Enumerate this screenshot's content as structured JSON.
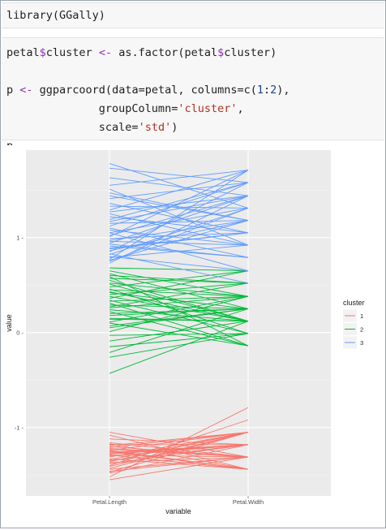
{
  "code": {
    "line1": "library(GGally)",
    "line2": "petal$cluster <- as.factor(petal$cluster)",
    "line3": "p <- ggparcoord(data=petal, columns=c(1:2),",
    "line4": "              groupColumn='cluster',",
    "line5": "              scale='std')",
    "line6": "p"
  },
  "chart_data": {
    "type": "line",
    "subtype": "parallel-coordinates",
    "xlabel": "variable",
    "ylabel": "value",
    "categories": [
      "Petal.Length",
      "Petal.Width"
    ],
    "ylim": [
      -1.72,
      1.92
    ],
    "y_ticks": [
      -1,
      0,
      1
    ],
    "y_tick_labels": [
      "-1 -",
      "0 -",
      "1 -"
    ],
    "x_tick_labels": [
      "Petal.Length",
      "Petal.Width"
    ],
    "grid": true,
    "legend": {
      "title": "cluster",
      "placement": "right",
      "entries": [
        "1",
        "2",
        "3"
      ]
    },
    "colors": {
      "1": "#F8766D",
      "2": "#00BA38",
      "3": "#619CFF"
    },
    "series": [
      {
        "name": "1",
        "lines": [
          [
            -1.23,
            -1.31
          ],
          [
            -1.28,
            -1.18
          ],
          [
            -1.25,
            -1.44
          ],
          [
            -1.36,
            -1.05
          ],
          [
            -1.2,
            -1.31
          ],
          [
            -1.48,
            -1.18
          ],
          [
            -1.31,
            -1.05
          ],
          [
            -1.4,
            -0.92
          ],
          [
            -1.17,
            -1.44
          ],
          [
            -1.46,
            -1.31
          ],
          [
            -1.26,
            -1.18
          ],
          [
            -1.34,
            -1.05
          ],
          [
            -1.22,
            -1.31
          ],
          [
            -1.52,
            -0.79
          ],
          [
            -1.29,
            -1.44
          ],
          [
            -1.38,
            -1.18
          ],
          [
            -1.19,
            -1.05
          ],
          [
            -1.44,
            -1.31
          ],
          [
            -1.27,
            -1.18
          ],
          [
            -1.33,
            -1.44
          ],
          [
            -1.21,
            -1.05
          ],
          [
            -1.55,
            -1.31
          ],
          [
            -1.3,
            -1.18
          ],
          [
            -1.43,
            -1.05
          ],
          [
            -1.24,
            -1.44
          ],
          [
            -1.37,
            -1.31
          ],
          [
            -1.18,
            -1.18
          ],
          [
            -1.41,
            -1.05
          ],
          [
            -1.05,
            -1.31
          ],
          [
            -1.12,
            -1.18
          ],
          [
            -1.08,
            -1.44
          ],
          [
            -1.16,
            -1.31
          ],
          [
            -1.35,
            -1.18
          ],
          [
            -1.24,
            -1.05
          ],
          [
            -1.29,
            -1.31
          ],
          [
            -1.47,
            -1.05
          ]
        ]
      },
      {
        "name": "2",
        "lines": [
          [
            0.65,
            0.38
          ],
          [
            0.57,
            0.52
          ],
          [
            0.48,
            0.65
          ],
          [
            0.62,
            0.25
          ],
          [
            0.43,
            0.12
          ],
          [
            0.52,
            0.38
          ],
          [
            0.36,
            0.65
          ],
          [
            0.55,
            0.12
          ],
          [
            0.29,
            0.25
          ],
          [
            0.46,
            -0.01
          ],
          [
            0.33,
            0.38
          ],
          [
            0.4,
            0.52
          ],
          [
            0.24,
            0.12
          ],
          [
            0.59,
            -0.14
          ],
          [
            0.18,
            0.25
          ],
          [
            0.45,
            0.38
          ],
          [
            0.14,
            0.12
          ],
          [
            0.34,
            -0.01
          ],
          [
            0.07,
            0.25
          ],
          [
            0.51,
            0.12
          ],
          [
            0.01,
            0.38
          ],
          [
            0.27,
            0.52
          ],
          [
            -0.03,
            -0.01
          ],
          [
            0.42,
            0.25
          ],
          [
            -0.09,
            0.12
          ],
          [
            0.22,
            -0.14
          ],
          [
            -0.15,
            -0.01
          ],
          [
            0.38,
            0.12
          ],
          [
            -0.21,
            0.25
          ],
          [
            0.11,
            0.38
          ],
          [
            -0.26,
            -0.01
          ],
          [
            0.31,
            -0.14
          ],
          [
            -0.43,
            0.12
          ],
          [
            0.05,
            0.25
          ],
          [
            0.6,
            0.52
          ],
          [
            0.68,
            0.65
          ],
          [
            0.2,
            0.25
          ],
          [
            0.15,
            0.12
          ],
          [
            0.26,
            0.38
          ],
          [
            0.1,
            -0.14
          ]
        ]
      },
      {
        "name": "3",
        "lines": [
          [
            1.78,
            1.31
          ],
          [
            1.73,
            1.58
          ],
          [
            1.63,
            1.44
          ],
          [
            1.55,
            1.71
          ],
          [
            1.47,
            1.18
          ],
          [
            1.41,
            1.58
          ],
          [
            1.33,
            1.31
          ],
          [
            1.29,
            1.71
          ],
          [
            1.22,
            1.05
          ],
          [
            1.17,
            1.44
          ],
          [
            1.12,
            1.58
          ],
          [
            1.08,
            0.92
          ],
          [
            1.05,
            1.31
          ],
          [
            1.01,
            1.71
          ],
          [
            0.97,
            1.18
          ],
          [
            0.94,
            1.44
          ],
          [
            0.91,
            0.79
          ],
          [
            0.88,
            1.05
          ],
          [
            0.85,
            1.58
          ],
          [
            0.82,
            1.31
          ],
          [
            0.79,
            0.92
          ],
          [
            0.76,
            1.18
          ],
          [
            0.73,
            1.44
          ],
          [
            1.36,
            1.05
          ],
          [
            1.25,
            0.92
          ],
          [
            1.15,
            1.18
          ],
          [
            1.02,
            1.44
          ],
          [
            0.99,
            1.05
          ],
          [
            0.93,
            0.79
          ],
          [
            0.86,
            1.18
          ],
          [
            0.8,
            0.65
          ],
          [
            0.75,
            1.31
          ],
          [
            1.51,
            0.92
          ],
          [
            1.44,
            1.18
          ],
          [
            1.19,
            1.58
          ],
          [
            1.1,
            0.79
          ],
          [
            0.96,
            0.92
          ],
          [
            0.89,
            1.05
          ],
          [
            0.83,
            0.52
          ],
          [
            0.77,
            1.71
          ],
          [
            1.27,
            1.44
          ],
          [
            1.05,
            0.65
          ]
        ]
      }
    ]
  }
}
